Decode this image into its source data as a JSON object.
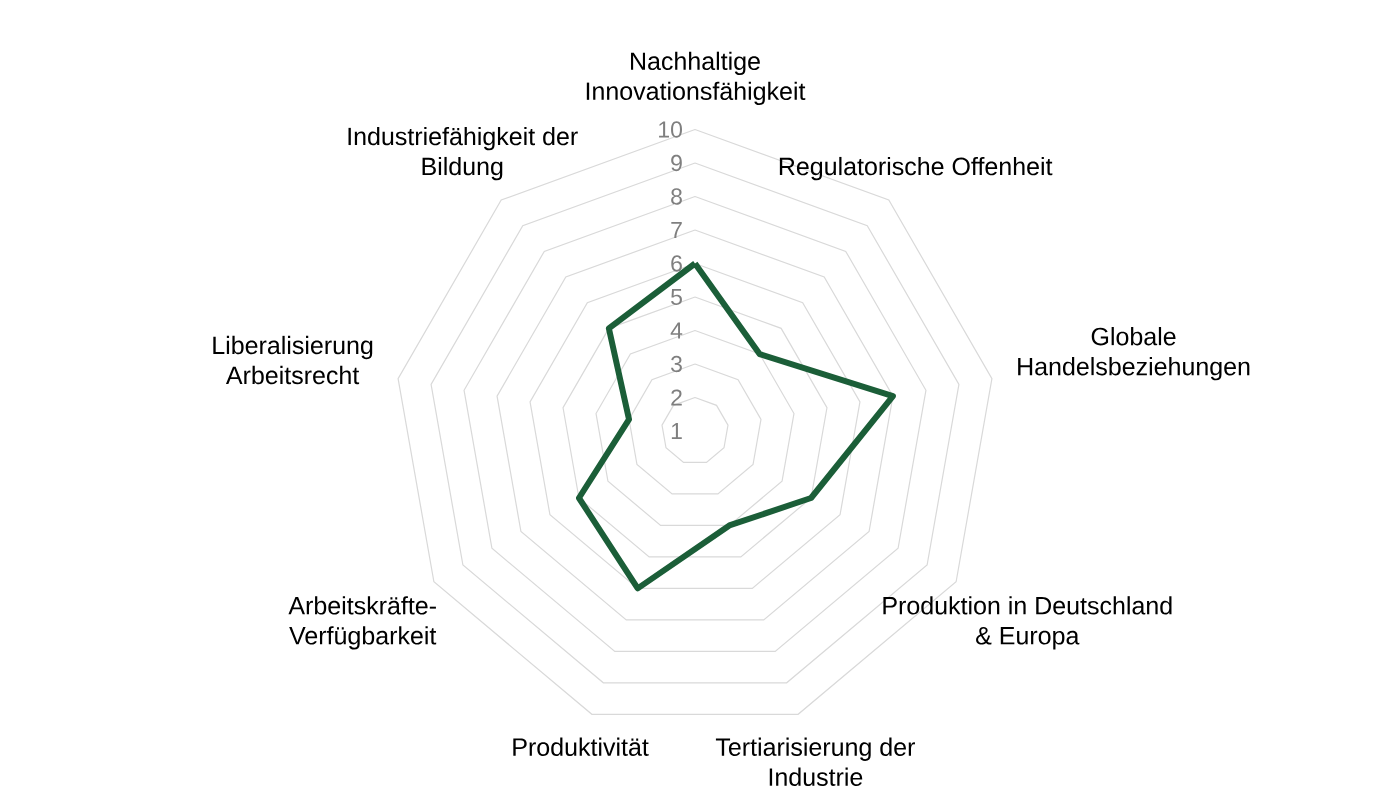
{
  "chart_data": {
    "type": "radar",
    "categories": [
      "Nachhaltige Innovationsfähigkeit",
      "Regulatorische Offenheit",
      "Globale Handelsbeziehungen",
      "Produktion in Deutschland & Europa",
      "Tertiarisierung der Industrie",
      "Produktivität",
      "Arbeitskräfte-Verfügbarkeit",
      "Liberalisierung Arbeitsrecht",
      "Industriefähigkeit der Bildung"
    ],
    "series": [
      {
        "color": "#1b5e38",
        "values": [
          6,
          4,
          7,
          5,
          4,
          6,
          5,
          3,
          5
        ]
      }
    ],
    "ylim": [
      1,
      10
    ],
    "yticks": [
      1,
      2,
      3,
      4,
      5,
      6,
      7,
      8,
      9,
      10
    ],
    "grid": true
  }
}
